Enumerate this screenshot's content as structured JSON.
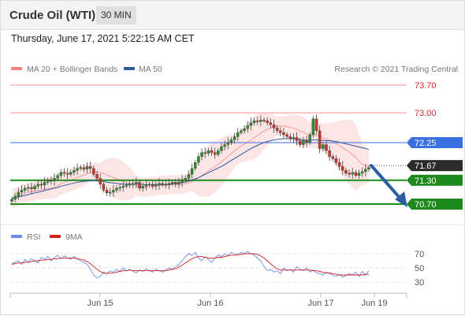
{
  "header": {
    "title": "Crude Oil (WTI)",
    "timeframe": "30 MIN"
  },
  "datetime": "Thursday, June 17, 2021 5:22:15 AM CET",
  "copyright": "Research © 2021 Trading Central",
  "legend": {
    "bollinger": "MA 20 + Bollinger Bands",
    "ma50": "MA 50",
    "rsi": "RSI",
    "rsi_ma": "9MA"
  },
  "colors": {
    "resistance": "#f4a8a8",
    "resistance_text": "#cc2b2b",
    "pivot": "#3a6fe0",
    "support": "#1e8a1e",
    "last": "#2b2b2b",
    "ma50": "#2c5aa0",
    "bollinger": "#f08080",
    "band_fill": "#fbdcdc",
    "candle_up": "#2e8b2e",
    "candle_down": "#c0392b",
    "rsi": "#6b8ee0",
    "rsi_ma": "#d42020",
    "arrow": "#2b5ea0"
  },
  "chart_data": {
    "type": "candlestick",
    "x_ticks": [
      "Jun 15",
      "Jun 16",
      "Jun 17",
      "Jun 19"
    ],
    "levels": [
      {
        "label": "73.70",
        "value": 73.7,
        "kind": "resistance"
      },
      {
        "label": "73.00",
        "value": 73.0,
        "kind": "resistance"
      },
      {
        "label": "72.25",
        "value": 72.25,
        "kind": "pivot"
      },
      {
        "label": "71.67",
        "value": 71.67,
        "kind": "last"
      },
      {
        "label": "71.30",
        "value": 71.3,
        "kind": "support"
      },
      {
        "label": "70.70",
        "value": 70.7,
        "kind": "support"
      }
    ],
    "price_ylim": [
      70.68,
      73.78
    ],
    "close_series": [
      70.82,
      70.9,
      71.0,
      71.05,
      71.1,
      71.12,
      71.08,
      71.15,
      71.2,
      71.18,
      71.25,
      71.3,
      71.28,
      71.35,
      71.42,
      71.5,
      71.48,
      71.45,
      71.5,
      71.55,
      71.6,
      71.62,
      71.58,
      71.65,
      71.6,
      71.45,
      71.35,
      71.2,
      71.05,
      70.98,
      71.0,
      71.05,
      71.1,
      71.12,
      71.15,
      71.18,
      71.2,
      71.22,
      71.25,
      71.1,
      71.15,
      71.18,
      71.2,
      71.15,
      71.18,
      71.22,
      71.2,
      71.18,
      71.22,
      71.25,
      71.2,
      71.25,
      71.3,
      71.35,
      71.45,
      71.6,
      71.75,
      71.9,
      72.0,
      71.98,
      72.05,
      72.0,
      71.95,
      72.05,
      72.15,
      72.2,
      72.25,
      72.32,
      72.4,
      72.5,
      72.55,
      72.6,
      72.68,
      72.75,
      72.8,
      72.78,
      72.82,
      72.8,
      72.75,
      72.7,
      72.62,
      72.55,
      72.5,
      72.45,
      72.4,
      72.35,
      72.38,
      72.3,
      72.2,
      72.3,
      72.25,
      72.45,
      72.85,
      72.55,
      72.1,
      72.2,
      72.05,
      71.9,
      71.85,
      71.75,
      71.65,
      71.55,
      71.48,
      71.45,
      71.5,
      71.42,
      71.48,
      71.52,
      71.58,
      71.62
    ],
    "ma50": [
      70.84,
      70.86,
      70.88,
      70.9,
      70.92,
      70.94,
      70.96,
      70.98,
      71.0,
      71.02,
      71.04,
      71.06,
      71.08,
      71.1,
      71.12,
      71.15,
      71.17,
      71.19,
      71.21,
      71.23,
      71.25,
      71.26,
      71.27,
      71.28,
      71.29,
      71.29,
      71.29,
      71.28,
      71.27,
      71.25,
      71.24,
      71.23,
      71.22,
      71.21,
      71.2,
      71.2,
      71.2,
      71.2,
      71.2,
      71.2,
      71.19,
      71.19,
      71.19,
      71.19,
      71.19,
      71.19,
      71.19,
      71.19,
      71.2,
      71.21,
      71.22,
      71.23,
      71.24,
      71.26,
      71.28,
      71.31,
      71.34,
      71.37,
      71.41,
      71.45,
      71.49,
      71.53,
      71.57,
      71.61,
      71.65,
      71.7,
      71.75,
      71.8,
      71.85,
      71.9,
      71.95,
      72.0,
      72.05,
      72.1,
      72.14,
      72.18,
      72.22,
      72.25,
      72.28,
      72.3,
      72.32,
      72.33,
      72.34,
      72.35,
      72.35,
      72.35,
      72.35,
      72.34,
      72.33,
      72.32,
      72.31,
      72.31,
      72.32,
      72.32,
      72.31,
      72.31,
      72.3,
      72.3,
      72.29,
      72.28,
      72.26,
      72.24,
      72.22,
      72.2,
      72.18,
      72.16,
      72.14,
      72.12,
      72.1,
      72.08
    ],
    "rsi_ylim": [
      25,
      78
    ],
    "rsi_ticks": [
      70,
      50,
      30
    ],
    "rsi": [
      56,
      58,
      60,
      55,
      62,
      58,
      63,
      60,
      57,
      65,
      62,
      66,
      60,
      64,
      68,
      63,
      67,
      64,
      62,
      66,
      63,
      60,
      58,
      55,
      48,
      40,
      36,
      38,
      44,
      42,
      46,
      44,
      48,
      45,
      50,
      46,
      48,
      45,
      43,
      47,
      45,
      49,
      46,
      44,
      48,
      46,
      44,
      47,
      50,
      48,
      52,
      55,
      60,
      66,
      70,
      68,
      72,
      64,
      60,
      66,
      62,
      58,
      64,
      68,
      66,
      70,
      67,
      72,
      70,
      68,
      72,
      70,
      73,
      70,
      68,
      64,
      60,
      52,
      46,
      48,
      44,
      46,
      42,
      50,
      46,
      48,
      44,
      52,
      48,
      46,
      50,
      44,
      47,
      43,
      42,
      40,
      44,
      42,
      40,
      38,
      41,
      37,
      39,
      42,
      40,
      44,
      38,
      45,
      40,
      46
    ],
    "rsi_ma": [
      55,
      56,
      57,
      57,
      58,
      58,
      59,
      60,
      60,
      61,
      61,
      62,
      62,
      63,
      63,
      64,
      64,
      64,
      64,
      64,
      63,
      62,
      61,
      59,
      56,
      52,
      48,
      45,
      43,
      42,
      43,
      43,
      44,
      45,
      46,
      46,
      47,
      46,
      46,
      46,
      46,
      46,
      46,
      46,
      46,
      46,
      46,
      46,
      47,
      48,
      49,
      51,
      54,
      57,
      60,
      63,
      65,
      66,
      66,
      65,
      64,
      64,
      64,
      65,
      65,
      66,
      67,
      68,
      68,
      69,
      69,
      70,
      70,
      70,
      70,
      69,
      67,
      64,
      60,
      56,
      52,
      49,
      47,
      47,
      47,
      47,
      47,
      47,
      47,
      47,
      47,
      47,
      46,
      46,
      45,
      44,
      43,
      43,
      42,
      41,
      40,
      40,
      40,
      40,
      40,
      40,
      40,
      40,
      41,
      41
    ]
  }
}
